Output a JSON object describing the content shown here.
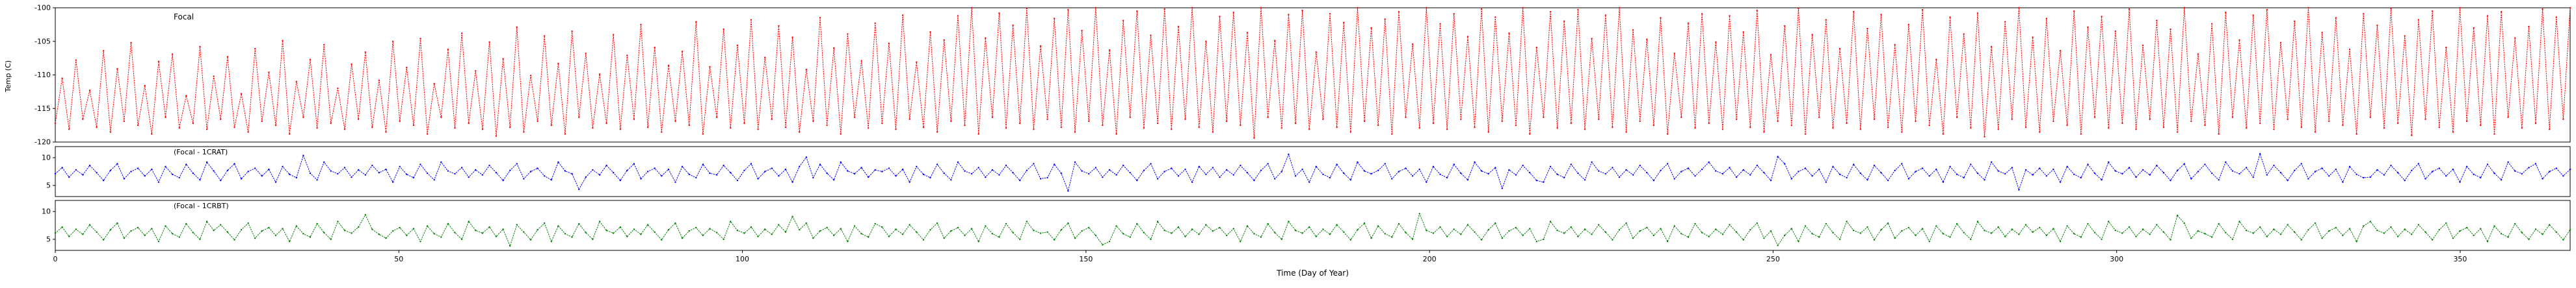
{
  "figure": {
    "ylabel": "Temp (C)",
    "xlabel": "Time (Day of Year)",
    "background": "#ffffff",
    "frame_color": "#000000",
    "xlim": [
      0,
      366
    ],
    "xticks": [
      0,
      50,
      100,
      150,
      200,
      250,
      300,
      350
    ]
  },
  "chart_data": [
    {
      "type": "line",
      "title": "Focal",
      "color": "#ff0000",
      "marker": "dotted",
      "x_unit": "day_of_year",
      "x_range": [
        0,
        366
      ],
      "ylim": [
        -120,
        -100
      ],
      "yticks": [
        -100,
        -105,
        -110,
        -115,
        -120
      ],
      "values": [
        -117.2,
        -110.5,
        -118.1,
        -107.8,
        -116.6,
        -112.3,
        -117.8,
        -106.4,
        -118.5,
        -109.1,
        -116.9,
        -105.2,
        -117.5,
        -111.6,
        -118.8,
        -108.0,
        -116.3,
        -106.9,
        -117.9,
        -113.1,
        -117.2,
        -105.8,
        -118.1,
        -110.2,
        -116.6,
        -107.3,
        -117.8,
        -112.8,
        -118.5,
        -106.1,
        -116.9,
        -109.6,
        -117.5,
        -104.9,
        -118.8,
        -111.0,
        -116.3,
        -107.7,
        -117.9,
        -105.5,
        -117.2,
        -112.0,
        -118.1,
        -108.4,
        -116.6,
        -106.6,
        -117.8,
        -110.8,
        -118.5,
        -105.0,
        -116.9,
        -108.9,
        -117.5,
        -104.6,
        -118.8,
        -111.3,
        -116.3,
        -106.2,
        -117.9,
        -103.8,
        -117.2,
        -109.4,
        -118.1,
        -105.1,
        -119.1,
        -107.6,
        -117.8,
        -102.9,
        -118.5,
        -110.1,
        -116.9,
        -104.2,
        -117.5,
        -108.3,
        -118.8,
        -103.5,
        -116.3,
        -106.8,
        -117.9,
        -109.9,
        -117.2,
        -104.0,
        -118.1,
        -107.1,
        -116.6,
        -102.5,
        -117.8,
        -105.9,
        -118.5,
        -108.6,
        -116.9,
        -106.5,
        -117.5,
        -102.1,
        -118.8,
        -108.8,
        -116.3,
        -103.2,
        -117.9,
        -105.6,
        -117.2,
        -101.8,
        -118.1,
        -107.4,
        -116.6,
        -102.7,
        -117.8,
        -104.4,
        -118.5,
        -109.2,
        -116.9,
        -101.5,
        -117.5,
        -106.0,
        -118.8,
        -103.9,
        -116.3,
        -107.9,
        -117.9,
        -102.3,
        -117.2,
        -105.3,
        -118.1,
        -101.1,
        -116.6,
        -108.1,
        -117.8,
        -103.6,
        -118.5,
        -104.8,
        -116.9,
        -101.2,
        -117.5,
        -100.0,
        -118.8,
        -104.5,
        -116.3,
        -100.8,
        -117.9,
        -102.6,
        -117.2,
        -100.1,
        -118.1,
        -105.7,
        -116.6,
        -101.6,
        -117.8,
        -100.3,
        -118.5,
        -103.4,
        -116.9,
        -100.0,
        -117.5,
        -106.3,
        -118.8,
        -101.9,
        -116.3,
        -100.5,
        -117.9,
        -104.1,
        -117.2,
        -100.2,
        -118.1,
        -102.8,
        -116.6,
        -100.0,
        -117.8,
        -105.0,
        -118.5,
        -101.3,
        -116.9,
        -100.7,
        -117.5,
        -103.7,
        -119.4,
        -100.0,
        -116.3,
        -104.9,
        -117.9,
        -101.0,
        -117.2,
        -100.4,
        -118.1,
        -106.6,
        -116.6,
        -100.9,
        -117.8,
        -102.2,
        -118.5,
        -100.0,
        -116.9,
        -103.0,
        -117.5,
        -101.7,
        -118.8,
        -100.6,
        -116.3,
        -105.4,
        -117.9,
        -100.0,
        -117.2,
        -102.4,
        -118.1,
        -100.9,
        -116.6,
        -104.3,
        -117.8,
        -100.2,
        -118.5,
        -101.4,
        -116.9,
        -103.8,
        -117.5,
        -100.0,
        -118.8,
        -105.9,
        -116.3,
        -100.6,
        -117.9,
        -102.0,
        -117.2,
        -100.3,
        -118.1,
        -104.6,
        -116.6,
        -101.1,
        -117.8,
        -100.0,
        -118.5,
        -103.3,
        -116.9,
        -104.7,
        -117.5,
        -101.5,
        -118.8,
        -106.8,
        -116.3,
        -102.3,
        -117.9,
        -100.9,
        -117.2,
        -105.1,
        -118.1,
        -101.2,
        -116.6,
        -103.6,
        -117.8,
        -100.4,
        -118.5,
        -107.0,
        -116.9,
        -102.7,
        -117.5,
        -100.1,
        -118.8,
        -104.0,
        -116.3,
        -101.8,
        -117.9,
        -106.1,
        -117.2,
        -100.6,
        -118.1,
        -103.1,
        -116.6,
        -101.0,
        -117.8,
        -105.5,
        -118.5,
        -102.5,
        -116.9,
        -100.3,
        -117.5,
        -107.7,
        -118.8,
        -101.4,
        -116.3,
        -103.9,
        -117.9,
        -100.8,
        -119.2,
        -105.8,
        -118.1,
        -102.1,
        -116.6,
        -100.0,
        -117.8,
        -104.4,
        -118.5,
        -101.6,
        -116.9,
        -106.4,
        -117.5,
        -100.5,
        -118.8,
        -102.9,
        -116.3,
        -101.3,
        -117.9,
        -103.5,
        -117.2,
        -100.2,
        -118.1,
        -105.6,
        -116.6,
        -101.9,
        -117.8,
        -103.2,
        -118.5,
        -100.0,
        -116.9,
        -106.9,
        -117.5,
        -102.4,
        -118.8,
        -100.7,
        -116.3,
        -104.8,
        -117.9,
        -101.1,
        -117.2,
        -100.3,
        -118.1,
        -105.2,
        -116.6,
        -102.0,
        -117.8,
        -100.0,
        -118.5,
        -103.7,
        -116.9,
        -101.5,
        -117.5,
        -106.2,
        -118.8,
        -100.9,
        -116.3,
        -102.6,
        -117.9,
        -100.1,
        -117.2,
        -104.2,
        -119.0,
        -101.8,
        -116.6,
        -100.5,
        -117.8,
        -105.9,
        -118.5,
        -100.0,
        -116.9,
        -103.0,
        -117.5,
        -101.2,
        -118.8,
        -100.6,
        -116.3,
        -104.5,
        -117.9,
        -102.8,
        -117.2,
        -100.2,
        -118.1,
        -101.4,
        -116.6,
        -100.0
      ]
    },
    {
      "type": "line",
      "title": "(Focal - 1CRAT)",
      "color": "#0000ff",
      "marker": "dotted",
      "x_unit": "day_of_year",
      "x_range": [
        0,
        366
      ],
      "ylim": [
        3,
        12
      ],
      "yticks": [
        10,
        5
      ],
      "values": [
        7.1,
        8.2,
        6.5,
        7.8,
        6.9,
        8.6,
        7.3,
        5.9,
        7.7,
        8.9,
        6.2,
        7.5,
        8.1,
        6.7,
        7.9,
        5.6,
        8.4,
        7.0,
        6.4,
        8.8,
        7.2,
        6.0,
        9.2,
        7.6,
        5.9,
        7.7,
        8.9,
        6.2,
        7.5,
        8.1,
        6.7,
        7.9,
        5.6,
        8.4,
        7.0,
        6.4,
        10.4,
        7.2,
        6.0,
        9.2,
        7.6,
        7.1,
        8.2,
        6.5,
        7.8,
        6.9,
        8.6,
        7.3,
        7.9,
        5.6,
        8.4,
        7.0,
        6.4,
        8.8,
        7.2,
        6.0,
        9.2,
        7.6,
        7.1,
        8.2,
        6.5,
        7.8,
        6.9,
        8.6,
        7.3,
        5.9,
        7.7,
        8.9,
        6.2,
        7.5,
        8.1,
        6.7,
        6.0,
        9.2,
        7.6,
        7.1,
        4.3,
        6.5,
        7.8,
        6.9,
        8.6,
        7.3,
        5.9,
        7.7,
        8.9,
        6.2,
        7.5,
        8.1,
        6.7,
        7.9,
        5.6,
        8.4,
        7.0,
        6.4,
        8.8,
        7.2,
        6.9,
        8.6,
        7.3,
        5.9,
        7.7,
        8.9,
        6.2,
        7.5,
        8.1,
        6.7,
        7.9,
        5.6,
        8.4,
        10.1,
        6.4,
        8.8,
        7.2,
        6.0,
        9.2,
        7.6,
        7.1,
        8.2,
        6.5,
        7.8,
        7.5,
        8.1,
        6.7,
        7.9,
        5.6,
        8.4,
        7.0,
        6.4,
        8.8,
        7.2,
        6.0,
        9.2,
        7.6,
        7.1,
        8.2,
        6.5,
        7.8,
        6.9,
        8.6,
        7.3,
        5.9,
        7.7,
        8.9,
        6.2,
        6.4,
        8.8,
        7.2,
        4.0,
        9.2,
        7.6,
        7.1,
        8.2,
        6.5,
        7.8,
        6.9,
        8.6,
        7.3,
        5.9,
        7.7,
        8.9,
        6.2,
        7.5,
        8.1,
        6.7,
        7.9,
        5.6,
        8.4,
        7.0,
        8.2,
        6.5,
        7.8,
        6.9,
        8.6,
        7.3,
        5.9,
        7.7,
        8.9,
        6.2,
        7.5,
        10.6,
        6.7,
        7.9,
        5.6,
        8.4,
        7.0,
        6.4,
        8.8,
        7.2,
        6.0,
        9.2,
        7.6,
        7.1,
        7.7,
        8.9,
        6.2,
        7.5,
        8.1,
        6.7,
        7.9,
        5.6,
        8.4,
        7.0,
        6.4,
        8.8,
        7.2,
        6.0,
        9.2,
        7.6,
        7.1,
        8.2,
        4.5,
        7.8,
        6.9,
        8.6,
        7.3,
        5.9,
        5.6,
        8.4,
        7.0,
        6.4,
        8.8,
        7.2,
        6.0,
        9.2,
        7.6,
        7.1,
        8.2,
        6.5,
        7.8,
        6.9,
        8.6,
        7.3,
        5.9,
        7.7,
        8.9,
        6.2,
        7.5,
        8.1,
        6.7,
        7.9,
        9.2,
        7.6,
        7.1,
        8.2,
        6.5,
        7.8,
        6.9,
        8.6,
        7.3,
        5.9,
        10.2,
        8.9,
        6.2,
        7.5,
        8.1,
        6.7,
        7.9,
        5.6,
        8.4,
        7.0,
        6.4,
        8.8,
        7.2,
        6.0,
        8.6,
        7.3,
        5.9,
        7.7,
        8.9,
        6.2,
        7.5,
        8.1,
        6.7,
        7.9,
        5.6,
        8.4,
        7.0,
        6.4,
        8.8,
        7.2,
        6.0,
        9.2,
        7.6,
        7.1,
        8.2,
        4.2,
        7.8,
        6.9,
        8.1,
        6.7,
        7.9,
        5.6,
        8.4,
        7.0,
        6.4,
        8.8,
        7.2,
        6.0,
        9.2,
        7.6,
        7.1,
        8.2,
        6.5,
        7.8,
        6.9,
        8.6,
        7.3,
        5.9,
        7.7,
        8.9,
        6.2,
        7.5,
        8.8,
        7.2,
        6.0,
        9.2,
        7.6,
        7.1,
        8.2,
        6.5,
        10.7,
        6.9,
        8.6,
        7.3,
        5.9,
        7.7,
        8.9,
        6.2,
        7.5,
        8.1,
        6.7,
        7.9,
        5.6,
        8.4,
        7.0,
        6.4,
        6.5,
        7.8,
        6.9,
        8.6,
        7.3,
        5.9,
        7.7,
        8.9,
        6.2,
        7.5,
        8.1,
        6.7,
        7.9,
        5.6,
        8.4,
        7.0,
        6.4,
        8.8,
        7.2,
        6.0,
        9.2,
        7.6,
        7.1,
        8.2,
        8.9,
        6.2,
        7.5,
        8.1,
        6.7,
        7.9
      ]
    },
    {
      "type": "line",
      "title": "(Focal - 1CRBT)",
      "color": "#008000",
      "marker": "dotted",
      "x_unit": "day_of_year",
      "x_range": [
        0,
        366
      ],
      "ylim": [
        3,
        12
      ],
      "yticks": [
        10,
        5
      ],
      "values": [
        6.1,
        7.2,
        5.5,
        6.8,
        5.9,
        7.6,
        6.3,
        4.9,
        6.7,
        7.9,
        5.2,
        6.5,
        7.1,
        5.7,
        6.9,
        4.6,
        7.4,
        6.0,
        5.4,
        7.8,
        6.2,
        5.0,
        8.2,
        6.6,
        7.6,
        6.3,
        4.9,
        6.7,
        7.9,
        5.2,
        6.5,
        7.1,
        5.7,
        6.9,
        4.6,
        7.4,
        6.0,
        5.4,
        7.8,
        6.2,
        5.0,
        8.2,
        6.6,
        6.1,
        7.2,
        9.4,
        6.8,
        5.9,
        5.2,
        6.5,
        7.1,
        5.7,
        6.9,
        4.6,
        7.4,
        6.0,
        5.4,
        7.8,
        6.2,
        5.0,
        8.2,
        6.6,
        6.1,
        7.2,
        5.5,
        6.8,
        3.8,
        7.6,
        6.3,
        4.9,
        6.7,
        7.9,
        4.6,
        7.4,
        6.0,
        5.4,
        7.8,
        6.2,
        5.0,
        8.2,
        6.6,
        6.1,
        7.2,
        5.5,
        6.8,
        5.9,
        7.6,
        6.3,
        4.9,
        6.7,
        7.9,
        5.2,
        6.5,
        7.1,
        5.7,
        6.9,
        6.2,
        5.0,
        8.2,
        6.6,
        6.1,
        7.2,
        5.5,
        6.8,
        5.9,
        7.6,
        6.3,
        9.1,
        6.7,
        7.9,
        5.2,
        6.5,
        7.1,
        5.7,
        6.9,
        4.6,
        7.4,
        6.0,
        5.4,
        7.8,
        7.2,
        5.5,
        6.8,
        5.9,
        7.6,
        6.3,
        4.9,
        6.7,
        7.9,
        5.2,
        6.5,
        7.1,
        5.7,
        6.9,
        4.6,
        7.4,
        6.0,
        5.4,
        7.8,
        6.2,
        5.0,
        8.2,
        6.6,
        6.1,
        6.3,
        4.9,
        6.7,
        7.9,
        5.2,
        6.5,
        7.1,
        5.7,
        4.0,
        4.6,
        7.4,
        6.0,
        5.4,
        7.8,
        6.2,
        5.0,
        8.2,
        6.6,
        6.1,
        7.2,
        5.5,
        6.8,
        5.9,
        7.6,
        6.5,
        7.1,
        5.7,
        6.9,
        4.6,
        7.4,
        6.0,
        5.4,
        7.8,
        6.2,
        5.0,
        8.2,
        6.6,
        6.1,
        7.2,
        5.5,
        6.8,
        5.9,
        7.6,
        6.3,
        4.9,
        6.7,
        7.9,
        5.2,
        7.4,
        6.0,
        5.4,
        7.8,
        6.2,
        5.0,
        9.6,
        6.6,
        6.1,
        7.2,
        5.5,
        6.8,
        5.9,
        7.6,
        6.3,
        4.9,
        6.7,
        7.9,
        5.2,
        6.5,
        7.1,
        5.7,
        6.9,
        4.6,
        5.0,
        8.2,
        6.6,
        6.1,
        7.2,
        5.5,
        6.8,
        5.9,
        7.6,
        6.3,
        4.9,
        6.7,
        7.9,
        5.2,
        6.5,
        7.1,
        5.7,
        6.9,
        4.6,
        7.4,
        6.0,
        5.4,
        7.8,
        6.2,
        5.5,
        6.8,
        5.9,
        7.6,
        6.3,
        4.9,
        6.7,
        7.9,
        5.2,
        6.5,
        3.9,
        5.7,
        6.9,
        4.6,
        7.4,
        6.0,
        5.4,
        7.8,
        6.2,
        5.0,
        8.2,
        6.6,
        6.1,
        7.2,
        4.9,
        6.7,
        7.9,
        5.2,
        6.5,
        7.1,
        5.7,
        6.9,
        4.6,
        7.4,
        6.0,
        5.4,
        7.8,
        6.2,
        5.0,
        8.2,
        6.6,
        6.1,
        7.2,
        5.5,
        6.8,
        5.9,
        7.6,
        6.3,
        7.1,
        5.7,
        6.9,
        4.6,
        7.4,
        6.0,
        5.4,
        7.8,
        6.2,
        5.0,
        8.2,
        6.6,
        6.1,
        7.2,
        5.5,
        6.8,
        5.9,
        7.6,
        6.3,
        4.9,
        9.3,
        7.9,
        5.2,
        6.5,
        6.0,
        5.4,
        7.8,
        6.2,
        5.0,
        8.2,
        6.6,
        6.1,
        7.2,
        5.5,
        6.8,
        5.9,
        7.6,
        6.3,
        4.9,
        6.7,
        7.9,
        5.2,
        6.5,
        7.1,
        5.7,
        6.9,
        4.6,
        7.4,
        8.2,
        6.6,
        6.1,
        7.2,
        5.5,
        6.8,
        5.9,
        7.6,
        6.3,
        4.9,
        6.7,
        7.9,
        5.2,
        6.5,
        7.1,
        5.7,
        6.9,
        4.6,
        7.4,
        6.0,
        5.4,
        7.8,
        6.2,
        5.0,
        6.8,
        5.9,
        7.6,
        6.3,
        4.9,
        6.7
      ]
    }
  ]
}
